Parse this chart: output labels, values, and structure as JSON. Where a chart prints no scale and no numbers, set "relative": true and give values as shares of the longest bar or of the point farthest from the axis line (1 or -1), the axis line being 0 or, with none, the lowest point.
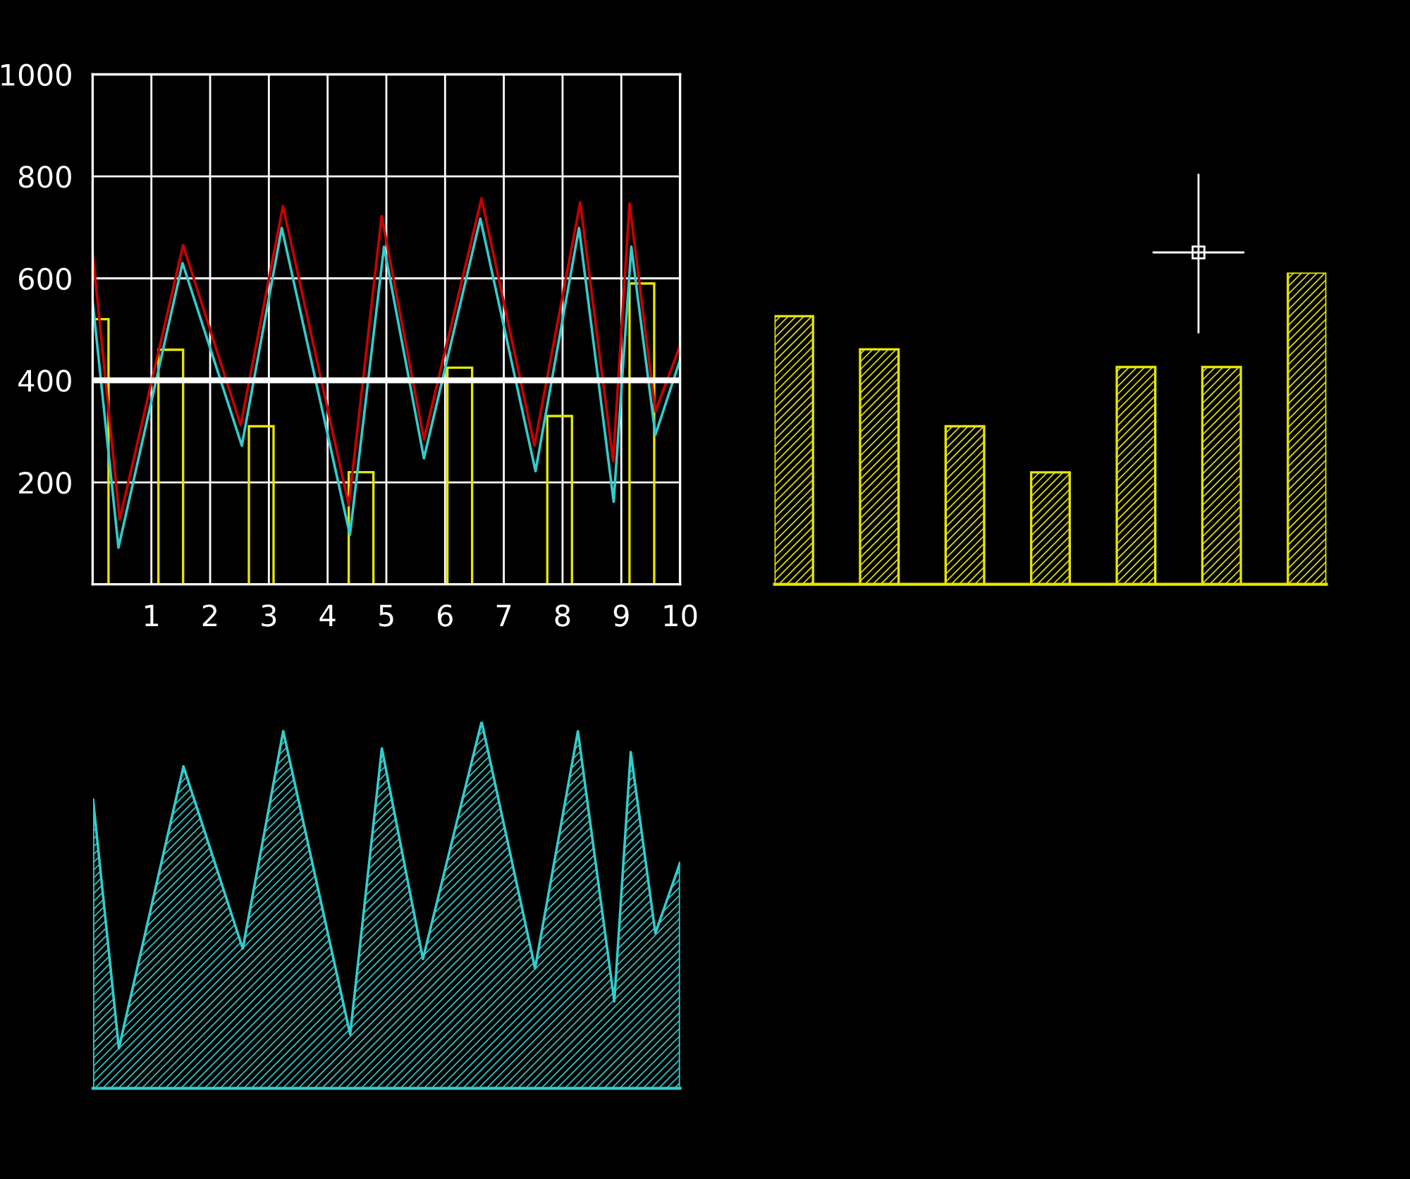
{
  "chart_data": [
    {
      "type": "line",
      "xlim": [
        0,
        10
      ],
      "ylim": [
        0,
        1000
      ],
      "xticks": [
        1,
        2,
        3,
        4,
        5,
        6,
        7,
        8,
        9,
        10
      ],
      "yticks": [
        200,
        400,
        600,
        800,
        1000
      ],
      "grid": true,
      "marker": "none",
      "line_style": "solid",
      "ref_lines": [
        {
          "axis": "y",
          "value": 400,
          "color": "#ffffff"
        }
      ],
      "series": [
        {
          "type": "bar",
          "color": "#e6e600",
          "x": [
            0.06,
            1.33,
            2.87,
            4.57,
            6.25,
            7.95,
            9.35
          ],
          "values": [
            520,
            460,
            310,
            220,
            425,
            330,
            590
          ]
        },
        {
          "color": "#cc0000",
          "x": [
            0,
            0.46,
            1.54,
            2.52,
            3.24,
            4.36,
            4.92,
            5.64,
            6.62,
            7.52,
            8.3,
            8.86,
            9.14,
            9.58,
            10
          ],
          "values": [
            650,
            127,
            665,
            312,
            742,
            155,
            722,
            284,
            757,
            272,
            749,
            242,
            747,
            339,
            468
          ]
        },
        {
          "color": "#33cccc",
          "x": [
            0,
            0.44,
            1.53,
            2.54,
            3.22,
            4.38,
            4.96,
            5.64,
            6.6,
            7.54,
            8.28,
            8.87,
            9.17,
            9.58,
            10
          ],
          "values": [
            555,
            72,
            630,
            272,
            699,
            97,
            662,
            247,
            717,
            222,
            699,
            162,
            662,
            293,
            440
          ]
        }
      ]
    },
    {
      "type": "bar",
      "relative": true,
      "categories": [
        null,
        null,
        null,
        null,
        null,
        null,
        null
      ],
      "values": [
        0.86,
        0.754,
        0.507,
        0.359,
        0.697,
        0.697,
        1
      ],
      "color": "#e6e600"
    },
    {
      "type": "area",
      "relative": true,
      "xlim": [
        0,
        10
      ],
      "color": "#33cccc",
      "x": [
        0,
        0.44,
        1.54,
        2.55,
        3.24,
        4.38,
        4.92,
        5.62,
        6.62,
        7.53,
        8.26,
        8.88,
        9.16,
        9.58,
        10
      ],
      "values": [
        0.788,
        0.109,
        0.878,
        0.381,
        0.974,
        0.147,
        0.927,
        0.353,
        1,
        0.327,
        0.974,
        0.237,
        0.917,
        0.423,
        0.615
      ]
    }
  ]
}
